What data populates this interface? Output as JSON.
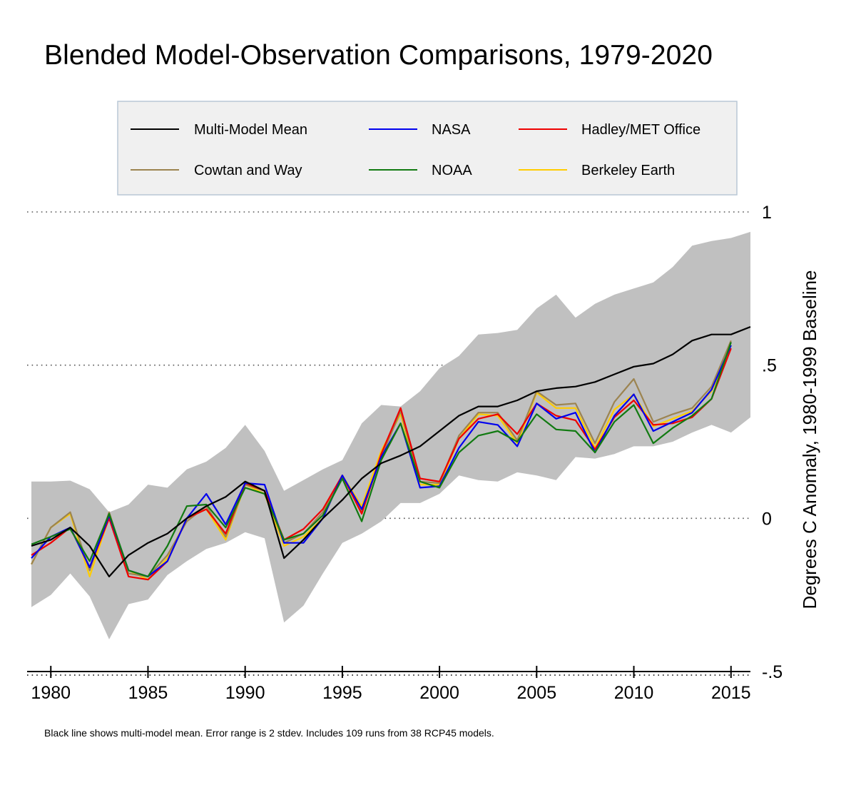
{
  "footnote": "Black line shows multi-model mean. Error range is 2 stdev. Includes 109 runs from 38 RCP45 models.",
  "colors": {
    "band": "#c0c0c0",
    "multi_model_mean": "#000000",
    "nasa": "#0000ee",
    "hadley": "#ee0000",
    "cowtan_way": "#9c8450",
    "noaa": "#117a11",
    "berkeley": "#ffcc00"
  },
  "chart_data": {
    "type": "line",
    "title": "Blended Model-Observation Comparisons, 1979-2020",
    "ylabel": "Degrees C Anomaly, 1980-1999 Baseline",
    "xlim": [
      1979,
      2016
    ],
    "ylim": [
      -0.5,
      1.0
    ],
    "x_ticks": [
      1980,
      1985,
      1990,
      1995,
      2000,
      2005,
      2010,
      2015
    ],
    "x_tick_labels": [
      "1980",
      "1985",
      "1990",
      "1995",
      "2000",
      "2005",
      "2010",
      "2015"
    ],
    "y_ticks": [
      1,
      0.5,
      0,
      -0.5
    ],
    "y_tick_labels": [
      "1",
      ".5",
      "0",
      "-.5"
    ],
    "grid": "dotted horizontal at y ticks",
    "legend": "top",
    "band": {
      "name": "2 stdev range",
      "x": [
        1979,
        1980,
        1981,
        1982,
        1983,
        1984,
        1985,
        1986,
        1987,
        1988,
        1989,
        1990,
        1991,
        1992,
        1993,
        1994,
        1995,
        1996,
        1997,
        1998,
        1999,
        2000,
        2001,
        2002,
        2003,
        2004,
        2005,
        2006,
        2007,
        2008,
        2009,
        2010,
        2011,
        2012,
        2013,
        2014,
        2015,
        2016
      ],
      "upper": [
        0.12,
        0.12,
        0.123,
        0.095,
        0.02,
        0.045,
        0.11,
        0.1,
        0.16,
        0.185,
        0.23,
        0.305,
        0.22,
        0.09,
        0.125,
        0.16,
        0.19,
        0.31,
        0.37,
        0.365,
        0.415,
        0.49,
        0.53,
        0.6,
        0.605,
        0.615,
        0.685,
        0.73,
        0.655,
        0.7,
        0.73,
        0.75,
        0.77,
        0.82,
        0.89,
        0.905,
        0.915,
        0.935
      ],
      "lower": [
        -0.29,
        -0.25,
        -0.18,
        -0.255,
        -0.395,
        -0.28,
        -0.265,
        -0.185,
        -0.14,
        -0.1,
        -0.08,
        -0.045,
        -0.065,
        -0.34,
        -0.285,
        -0.18,
        -0.08,
        -0.05,
        -0.01,
        0.05,
        0.05,
        0.08,
        0.14,
        0.125,
        0.12,
        0.15,
        0.14,
        0.125,
        0.2,
        0.195,
        0.21,
        0.235,
        0.235,
        0.25,
        0.28,
        0.305,
        0.28,
        0.33
      ]
    },
    "x": [
      1979,
      1980,
      1981,
      1982,
      1983,
      1984,
      1985,
      1986,
      1987,
      1988,
      1989,
      1990,
      1991,
      1992,
      1993,
      1994,
      1995,
      1996,
      1997,
      1998,
      1999,
      2000,
      2001,
      2002,
      2003,
      2004,
      2005,
      2006,
      2007,
      2008,
      2009,
      2010,
      2011,
      2012,
      2013,
      2014,
      2015,
      2016
    ],
    "series": [
      {
        "name": "Multi-Model Mean",
        "color_key": "multi_model_mean",
        "values": [
          -0.09,
          -0.07,
          -0.03,
          -0.09,
          -0.19,
          -0.12,
          -0.08,
          -0.05,
          0.0,
          0.04,
          0.07,
          0.12,
          0.09,
          -0.13,
          -0.07,
          0.0,
          0.06,
          0.13,
          0.18,
          0.205,
          0.235,
          0.285,
          0.335,
          0.365,
          0.365,
          0.385,
          0.415,
          0.425,
          0.43,
          0.445,
          0.47,
          0.495,
          0.505,
          0.535,
          0.58,
          0.6,
          0.6,
          0.625
        ]
      },
      {
        "name": "NASA",
        "color_key": "nasa",
        "values": [
          -0.13,
          -0.06,
          -0.03,
          -0.16,
          0.01,
          -0.17,
          -0.19,
          -0.14,
          0.0,
          0.08,
          -0.02,
          0.115,
          0.11,
          -0.08,
          -0.08,
          0.0,
          0.14,
          0.03,
          0.2,
          0.31,
          0.1,
          0.105,
          0.23,
          0.315,
          0.305,
          0.235,
          0.375,
          0.325,
          0.345,
          0.215,
          0.335,
          0.405,
          0.285,
          0.315,
          0.345,
          0.42,
          0.565,
          null
        ]
      },
      {
        "name": "Hadley/MET Office",
        "color_key": "hadley",
        "values": [
          -0.12,
          -0.08,
          -0.03,
          -0.16,
          0.0,
          -0.19,
          -0.2,
          -0.14,
          0.0,
          0.03,
          -0.05,
          0.115,
          0.09,
          -0.07,
          -0.035,
          0.03,
          0.14,
          0.015,
          0.21,
          0.36,
          0.13,
          0.12,
          0.26,
          0.325,
          0.34,
          0.275,
          0.375,
          0.335,
          0.32,
          0.225,
          0.33,
          0.385,
          0.305,
          0.31,
          0.33,
          0.39,
          0.555,
          null
        ]
      },
      {
        "name": "Cowtan and Way",
        "color_key": "cowtan_way",
        "values": [
          -0.15,
          -0.03,
          0.02,
          -0.17,
          0.02,
          -0.18,
          -0.19,
          -0.12,
          -0.01,
          0.04,
          -0.06,
          0.11,
          0.09,
          -0.08,
          -0.05,
          0.02,
          0.14,
          0.02,
          0.2,
          0.35,
          0.12,
          0.115,
          0.27,
          0.345,
          0.345,
          0.255,
          0.415,
          0.37,
          0.375,
          0.245,
          0.38,
          0.455,
          0.315,
          0.34,
          0.36,
          0.43,
          0.58,
          null
        ]
      },
      {
        "name": "NOAA",
        "color_key": "noaa",
        "values": [
          -0.085,
          -0.06,
          -0.035,
          -0.14,
          0.015,
          -0.17,
          -0.19,
          -0.09,
          0.04,
          0.045,
          -0.03,
          0.1,
          0.08,
          -0.07,
          -0.05,
          0.01,
          0.13,
          -0.01,
          0.19,
          0.31,
          0.12,
          0.1,
          0.215,
          0.27,
          0.285,
          0.25,
          0.34,
          0.29,
          0.285,
          0.215,
          0.315,
          0.37,
          0.245,
          0.295,
          0.335,
          0.39,
          0.575,
          null
        ]
      },
      {
        "name": "Berkeley Earth",
        "color_key": "berkeley",
        "values": [
          -0.15,
          -0.03,
          0.015,
          -0.19,
          0.005,
          -0.17,
          -0.2,
          -0.13,
          0.0,
          0.03,
          -0.07,
          0.11,
          0.08,
          -0.09,
          -0.06,
          0.0,
          0.14,
          0.04,
          0.22,
          0.34,
          0.11,
          0.11,
          0.26,
          0.34,
          0.335,
          0.245,
          0.41,
          0.36,
          0.36,
          0.23,
          0.355,
          0.405,
          0.3,
          0.325,
          0.35,
          0.415,
          0.555,
          null
        ]
      }
    ]
  }
}
